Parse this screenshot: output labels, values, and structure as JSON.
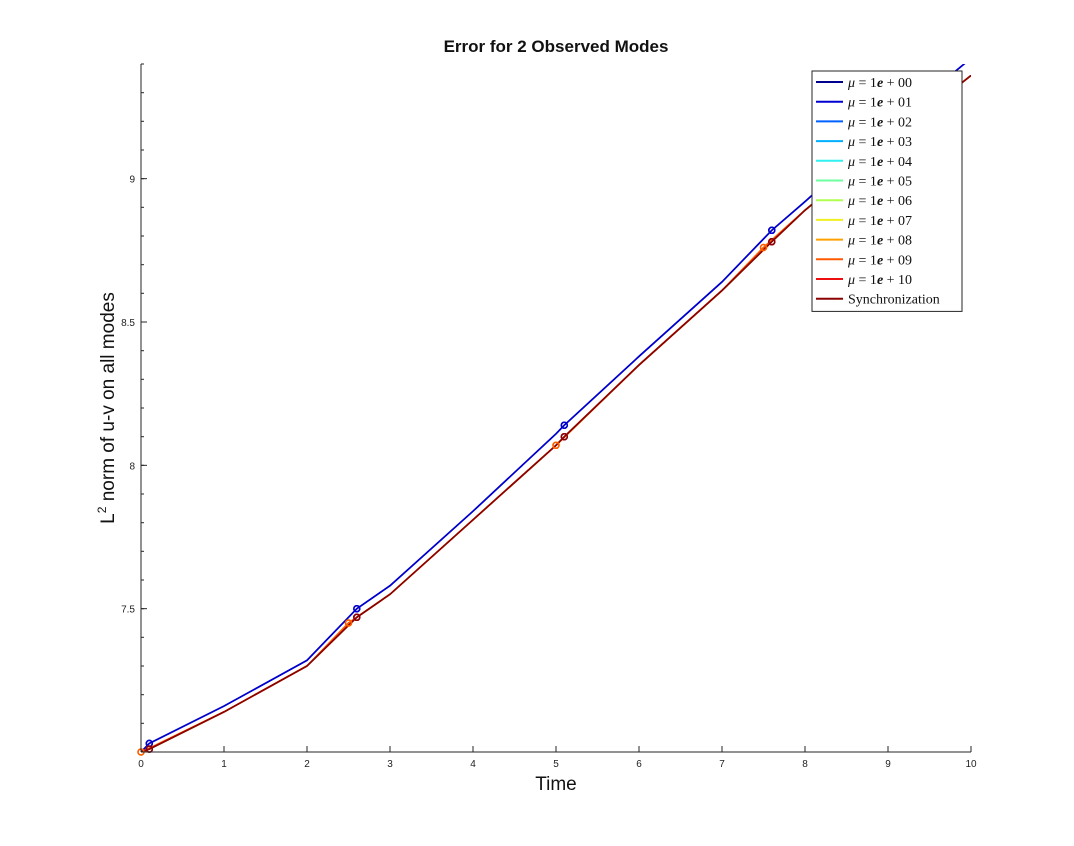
{
  "chart_data": {
    "type": "line",
    "title": "Error for 2 Observed Modes",
    "xlabel": "Time",
    "ylabel_base": "L",
    "ylabel_sup": "2",
    "ylabel_rest": " norm of u-v on all modes",
    "xlim": [
      0,
      10
    ],
    "ylim": [
      7.0,
      9.4
    ],
    "x_ticks": [
      0,
      1,
      2,
      3,
      4,
      5,
      6,
      7,
      8,
      9,
      10
    ],
    "x_tick_labels": [
      "0",
      "1",
      "2",
      "3",
      "4",
      "5",
      "6",
      "7",
      "8",
      "9",
      "10"
    ],
    "y_ticks": [
      7.5,
      8,
      8.5,
      9
    ],
    "y_tick_labels": [
      "7.5",
      "8",
      "8.5",
      "9"
    ],
    "grid": false,
    "legend_position": "top-right",
    "legend_prefix": "μ",
    "legend_eq": " = 1",
    "legend_e": "e",
    "series": [
      {
        "name_exp": " + 00",
        "color": "#00008f",
        "points": [
          [
            0,
            7.0
          ],
          [
            0.1,
            7.03
          ],
          [
            1,
            7.16
          ],
          [
            2,
            7.32
          ],
          [
            2.6,
            7.5
          ],
          [
            3,
            7.58
          ],
          [
            4,
            7.84
          ],
          [
            5,
            8.11
          ],
          [
            5.1,
            8.14
          ],
          [
            6,
            8.38
          ],
          [
            7,
            8.64
          ],
          [
            7.6,
            8.82
          ],
          [
            8,
            8.92
          ],
          [
            9,
            9.18
          ],
          [
            10,
            9.42
          ]
        ],
        "markers": [
          [
            0.1,
            7.03
          ],
          [
            2.6,
            7.5
          ],
          [
            5.1,
            8.14
          ],
          [
            7.6,
            8.82
          ]
        ]
      },
      {
        "name_exp": " + 01",
        "color": "#0000d0",
        "points": [
          [
            0,
            7.0
          ],
          [
            0.1,
            7.03
          ],
          [
            1,
            7.16
          ],
          [
            2,
            7.32
          ],
          [
            2.6,
            7.5
          ],
          [
            3,
            7.58
          ],
          [
            4,
            7.84
          ],
          [
            5,
            8.11
          ],
          [
            5.1,
            8.14
          ],
          [
            6,
            8.38
          ],
          [
            7,
            8.64
          ],
          [
            7.6,
            8.82
          ],
          [
            8,
            8.92
          ],
          [
            9,
            9.18
          ],
          [
            10,
            9.42
          ]
        ],
        "markers": [
          [
            0.1,
            7.03
          ],
          [
            2.6,
            7.5
          ],
          [
            5.1,
            8.14
          ],
          [
            7.6,
            8.82
          ]
        ]
      },
      {
        "name_exp": " + 02",
        "color": "#0060ff",
        "points": [
          [
            0,
            7.0
          ],
          [
            0.1,
            7.01
          ],
          [
            1,
            7.14
          ],
          [
            2,
            7.3
          ],
          [
            2.6,
            7.47
          ],
          [
            3,
            7.55
          ],
          [
            4,
            7.81
          ],
          [
            5,
            8.07
          ],
          [
            5.1,
            8.1
          ],
          [
            6,
            8.35
          ],
          [
            7,
            8.61
          ],
          [
            7.6,
            8.78
          ],
          [
            8,
            8.89
          ],
          [
            9,
            9.13
          ],
          [
            10,
            9.36
          ]
        ],
        "markers": [
          [
            0.1,
            7.01
          ],
          [
            2.6,
            7.47
          ],
          [
            5.1,
            8.1
          ],
          [
            7.6,
            8.78
          ]
        ]
      },
      {
        "name_exp": " + 03",
        "color": "#00b0ff",
        "points": [
          [
            0,
            7.0
          ],
          [
            0.1,
            7.01
          ],
          [
            1,
            7.14
          ],
          [
            2,
            7.3
          ],
          [
            2.6,
            7.47
          ],
          [
            3,
            7.55
          ],
          [
            4,
            7.81
          ],
          [
            5,
            8.07
          ],
          [
            5.1,
            8.1
          ],
          [
            6,
            8.35
          ],
          [
            7,
            8.61
          ],
          [
            7.6,
            8.78
          ],
          [
            8,
            8.89
          ],
          [
            9,
            9.13
          ],
          [
            10,
            9.36
          ]
        ],
        "markers": []
      },
      {
        "name_exp": " + 04",
        "color": "#30f0f0",
        "points": [
          [
            0,
            7.0
          ],
          [
            0.1,
            7.01
          ],
          [
            1,
            7.14
          ],
          [
            2,
            7.3
          ],
          [
            2.6,
            7.47
          ],
          [
            3,
            7.55
          ],
          [
            4,
            7.81
          ],
          [
            5,
            8.07
          ],
          [
            5.1,
            8.1
          ],
          [
            6,
            8.35
          ],
          [
            7,
            8.61
          ],
          [
            7.6,
            8.78
          ],
          [
            8,
            8.89
          ],
          [
            9,
            9.13
          ],
          [
            10,
            9.36
          ]
        ],
        "markers": []
      },
      {
        "name_exp": " + 05",
        "color": "#70ffa0",
        "points": [
          [
            0,
            7.0
          ],
          [
            0.1,
            7.01
          ],
          [
            1,
            7.14
          ],
          [
            2,
            7.3
          ],
          [
            2.6,
            7.47
          ],
          [
            3,
            7.55
          ],
          [
            4,
            7.81
          ],
          [
            5,
            8.07
          ],
          [
            5.1,
            8.1
          ],
          [
            6,
            8.35
          ],
          [
            7,
            8.61
          ],
          [
            7.6,
            8.78
          ],
          [
            8,
            8.89
          ],
          [
            9,
            9.13
          ],
          [
            10,
            9.36
          ]
        ],
        "markers": []
      },
      {
        "name_exp": " + 06",
        "color": "#b0ff50",
        "points": [
          [
            0,
            7.0
          ],
          [
            0.1,
            7.01
          ],
          [
            1,
            7.14
          ],
          [
            2,
            7.3
          ],
          [
            2.6,
            7.47
          ],
          [
            3,
            7.55
          ],
          [
            4,
            7.81
          ],
          [
            5,
            8.07
          ],
          [
            5.1,
            8.1
          ],
          [
            6,
            8.35
          ],
          [
            7,
            8.61
          ],
          [
            7.6,
            8.78
          ],
          [
            8,
            8.89
          ],
          [
            9,
            9.13
          ],
          [
            10,
            9.36
          ]
        ],
        "markers": []
      },
      {
        "name_exp": " + 07",
        "color": "#f0f020",
        "points": [
          [
            0,
            7.0
          ],
          [
            0.1,
            7.01
          ],
          [
            1,
            7.14
          ],
          [
            2,
            7.3
          ],
          [
            2.6,
            7.47
          ],
          [
            3,
            7.55
          ],
          [
            4,
            7.81
          ],
          [
            5,
            8.07
          ],
          [
            5.1,
            8.1
          ],
          [
            6,
            8.35
          ],
          [
            7,
            8.61
          ],
          [
            7.6,
            8.78
          ],
          [
            8,
            8.89
          ],
          [
            9,
            9.13
          ],
          [
            10,
            9.36
          ]
        ],
        "markers": []
      },
      {
        "name_exp": " + 08",
        "color": "#ffa000",
        "points": [
          [
            0,
            7.0
          ],
          [
            0.08,
            7.01
          ],
          [
            1,
            7.14
          ],
          [
            2,
            7.3
          ],
          [
            2.5,
            7.45
          ],
          [
            3,
            7.55
          ],
          [
            4,
            7.81
          ],
          [
            5,
            8.07
          ],
          [
            6,
            8.35
          ],
          [
            7,
            8.61
          ],
          [
            7.5,
            8.76
          ],
          [
            8,
            8.89
          ],
          [
            9,
            9.13
          ],
          [
            10,
            9.36
          ]
        ],
        "markers": [
          [
            0,
            7.0
          ],
          [
            2.5,
            7.45
          ],
          [
            5,
            8.07
          ],
          [
            7.5,
            8.76
          ]
        ]
      },
      {
        "name_exp": " + 09",
        "color": "#ff5a00",
        "points": [
          [
            0,
            7.0
          ],
          [
            0.08,
            7.01
          ],
          [
            1,
            7.14
          ],
          [
            2,
            7.3
          ],
          [
            2.5,
            7.45
          ],
          [
            3,
            7.55
          ],
          [
            4,
            7.81
          ],
          [
            5,
            8.07
          ],
          [
            6,
            8.35
          ],
          [
            7,
            8.61
          ],
          [
            7.5,
            8.76
          ],
          [
            8,
            8.89
          ],
          [
            9,
            9.13
          ],
          [
            10,
            9.36
          ]
        ],
        "markers": [
          [
            0,
            7.0
          ],
          [
            2.5,
            7.45
          ],
          [
            5,
            8.07
          ],
          [
            7.5,
            8.76
          ]
        ]
      },
      {
        "name_exp": " + 10",
        "color": "#ee1010",
        "points": [
          [
            0,
            7.0
          ],
          [
            0.1,
            7.01
          ],
          [
            1,
            7.14
          ],
          [
            2,
            7.3
          ],
          [
            2.6,
            7.47
          ],
          [
            3,
            7.55
          ],
          [
            4,
            7.81
          ],
          [
            5,
            8.07
          ],
          [
            5.1,
            8.1
          ],
          [
            6,
            8.35
          ],
          [
            7,
            8.61
          ],
          [
            7.6,
            8.78
          ],
          [
            8,
            8.89
          ],
          [
            9,
            9.13
          ],
          [
            10,
            9.36
          ]
        ],
        "markers": [
          [
            0.1,
            7.01
          ],
          [
            2.6,
            7.47
          ],
          [
            5.1,
            8.1
          ],
          [
            7.6,
            8.78
          ]
        ]
      },
      {
        "name": "Synchronization",
        "color": "#8b0000",
        "points": [
          [
            0,
            7.0
          ],
          [
            0.1,
            7.01
          ],
          [
            1,
            7.14
          ],
          [
            2,
            7.3
          ],
          [
            2.6,
            7.47
          ],
          [
            3,
            7.55
          ],
          [
            4,
            7.81
          ],
          [
            5,
            8.07
          ],
          [
            5.1,
            8.1
          ],
          [
            6,
            8.35
          ],
          [
            7,
            8.61
          ],
          [
            7.6,
            8.78
          ],
          [
            8,
            8.89
          ],
          [
            9,
            9.13
          ],
          [
            10,
            9.36
          ]
        ],
        "markers": [
          [
            0.1,
            7.01
          ],
          [
            2.6,
            7.47
          ],
          [
            5.1,
            8.1
          ],
          [
            7.6,
            8.78
          ]
        ]
      }
    ]
  }
}
